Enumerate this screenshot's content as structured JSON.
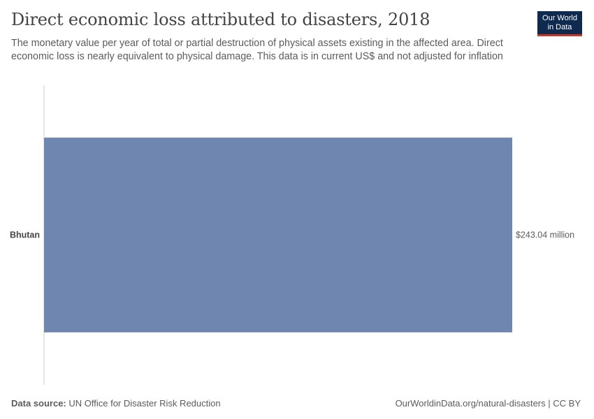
{
  "header": {
    "title": "Direct economic loss attributed to disasters, 2018",
    "subtitle": "The monetary value per year of total or partial destruction of physical assets existing in the affected area. Direct economic loss is nearly equivalent to physical damage. This data is in current US$ and not adjusted for inflation"
  },
  "logo": {
    "line1": "Our World",
    "line2": "in Data"
  },
  "chart_data": {
    "type": "bar",
    "orientation": "horizontal",
    "categories": [
      "Bhutan"
    ],
    "values": [
      243040000
    ],
    "value_labels": [
      "$243.04 million"
    ],
    "bar_color": "#6f87b0",
    "axis_color": "#cccccc",
    "grid": false
  },
  "footer": {
    "source_label": "Data source:",
    "source_text": "UN Office for Disaster Risk Reduction",
    "link_text": "OurWorldinData.org/natural-disasters",
    "license": "CC BY"
  }
}
